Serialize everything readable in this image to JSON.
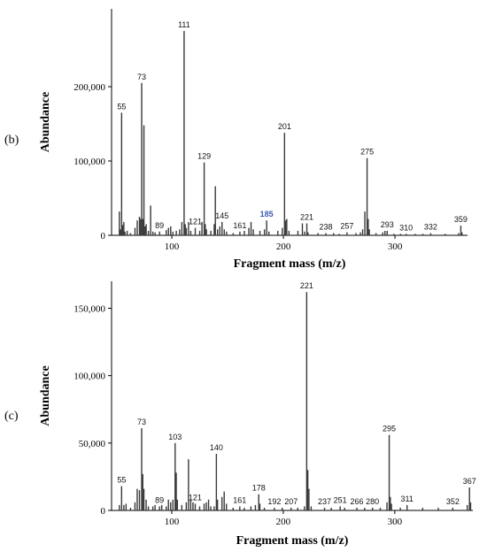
{
  "chart_data": [
    {
      "panel_label": "(b)",
      "type": "bar",
      "xlabel": "Fragment mass (m/z)",
      "ylabel": "Abundance",
      "xlim": [
        46,
        365
      ],
      "ylim": [
        0,
        300000
      ],
      "xticks": [
        100,
        200,
        300
      ],
      "yticks": [
        0,
        100000,
        200000
      ],
      "ytick_labels": [
        "0",
        "100,000",
        "200,000"
      ],
      "peaks": [
        {
          "x": 53,
          "y": 32000
        },
        {
          "x": 54,
          "y": 8000
        },
        {
          "x": 55,
          "y": 165000,
          "label": "55"
        },
        {
          "x": 56,
          "y": 14000
        },
        {
          "x": 57,
          "y": 18000
        },
        {
          "x": 58,
          "y": 5000
        },
        {
          "x": 60,
          "y": 6000
        },
        {
          "x": 63,
          "y": 3000
        },
        {
          "x": 67,
          "y": 10000
        },
        {
          "x": 69,
          "y": 20000
        },
        {
          "x": 71,
          "y": 25000
        },
        {
          "x": 72,
          "y": 22000
        },
        {
          "x": 73,
          "y": 205000,
          "label": "73"
        },
        {
          "x": 74,
          "y": 22000
        },
        {
          "x": 75,
          "y": 148000
        },
        {
          "x": 76,
          "y": 12000
        },
        {
          "x": 77,
          "y": 15000
        },
        {
          "x": 79,
          "y": 6000
        },
        {
          "x": 81,
          "y": 40000
        },
        {
          "x": 83,
          "y": 5000
        },
        {
          "x": 85,
          "y": 4000
        },
        {
          "x": 89,
          "y": 5000,
          "label": "89"
        },
        {
          "x": 95,
          "y": 7000
        },
        {
          "x": 97,
          "y": 10000
        },
        {
          "x": 99,
          "y": 12000
        },
        {
          "x": 101,
          "y": 5000
        },
        {
          "x": 104,
          "y": 6000
        },
        {
          "x": 107,
          "y": 8000
        },
        {
          "x": 109,
          "y": 18000
        },
        {
          "x": 111,
          "y": 275000,
          "label": "111"
        },
        {
          "x": 112,
          "y": 15000
        },
        {
          "x": 113,
          "y": 10000
        },
        {
          "x": 115,
          "y": 18000
        },
        {
          "x": 117,
          "y": 6000
        },
        {
          "x": 121,
          "y": 10000,
          "label": "121"
        },
        {
          "x": 125,
          "y": 6000
        },
        {
          "x": 127,
          "y": 18000
        },
        {
          "x": 129,
          "y": 98000,
          "label": "129"
        },
        {
          "x": 130,
          "y": 15000
        },
        {
          "x": 131,
          "y": 8000
        },
        {
          "x": 135,
          "y": 6000
        },
        {
          "x": 138,
          "y": 15000
        },
        {
          "x": 139,
          "y": 66000
        },
        {
          "x": 141,
          "y": 8000
        },
        {
          "x": 143,
          "y": 12000
        },
        {
          "x": 145,
          "y": 18000,
          "label": "145"
        },
        {
          "x": 147,
          "y": 8000
        },
        {
          "x": 149,
          "y": 5000
        },
        {
          "x": 155,
          "y": 3000
        },
        {
          "x": 161,
          "y": 5000,
          "label": "161"
        },
        {
          "x": 165,
          "y": 6000
        },
        {
          "x": 169,
          "y": 10000
        },
        {
          "x": 171,
          "y": 18000
        },
        {
          "x": 173,
          "y": 8000
        },
        {
          "x": 179,
          "y": 6000
        },
        {
          "x": 183,
          "y": 8000
        },
        {
          "x": 185,
          "y": 20000,
          "label": "185",
          "faded": true
        },
        {
          "x": 187,
          "y": 5000
        },
        {
          "x": 195,
          "y": 6000
        },
        {
          "x": 199,
          "y": 10000
        },
        {
          "x": 201,
          "y": 138000,
          "label": "201"
        },
        {
          "x": 202,
          "y": 20000
        },
        {
          "x": 203,
          "y": 22000
        },
        {
          "x": 205,
          "y": 6000
        },
        {
          "x": 213,
          "y": 6000
        },
        {
          "x": 217,
          "y": 16000
        },
        {
          "x": 219,
          "y": 5000
        },
        {
          "x": 221,
          "y": 16000,
          "label": "221"
        },
        {
          "x": 222,
          "y": 4000
        },
        {
          "x": 231,
          "y": 3000
        },
        {
          "x": 238,
          "y": 3000,
          "label": "238"
        },
        {
          "x": 245,
          "y": 3000
        },
        {
          "x": 250,
          "y": 2000
        },
        {
          "x": 257,
          "y": 4000,
          "label": "257"
        },
        {
          "x": 265,
          "y": 3000
        },
        {
          "x": 269,
          "y": 4000
        },
        {
          "x": 271,
          "y": 8000
        },
        {
          "x": 273,
          "y": 32000
        },
        {
          "x": 275,
          "y": 104000,
          "label": "275"
        },
        {
          "x": 276,
          "y": 22000
        },
        {
          "x": 277,
          "y": 8000
        },
        {
          "x": 283,
          "y": 3000
        },
        {
          "x": 289,
          "y": 4000
        },
        {
          "x": 291,
          "y": 6000
        },
        {
          "x": 293,
          "y": 6000,
          "label": "293"
        },
        {
          "x": 299,
          "y": 2000
        },
        {
          "x": 305,
          "y": 2000
        },
        {
          "x": 310,
          "y": 2000,
          "label": "310"
        },
        {
          "x": 318,
          "y": 2000
        },
        {
          "x": 325,
          "y": 2000
        },
        {
          "x": 332,
          "y": 3000,
          "label": "332"
        },
        {
          "x": 345,
          "y": 2000
        },
        {
          "x": 357,
          "y": 3000
        },
        {
          "x": 359,
          "y": 13000,
          "label": "359"
        },
        {
          "x": 360,
          "y": 4000
        }
      ]
    },
    {
      "panel_label": "(c)",
      "type": "bar",
      "xlabel": "Fragment mass (m/z)",
      "ylabel": "Abundance",
      "xlim": [
        46,
        370
      ],
      "ylim": [
        0,
        170000
      ],
      "xticks": [
        100,
        200,
        300
      ],
      "yticks": [
        0,
        50000,
        100000,
        150000
      ],
      "ytick_labels": [
        "0",
        "50,000",
        "100,000",
        "150,000"
      ],
      "peaks": [
        {
          "x": 53,
          "y": 4000
        },
        {
          "x": 55,
          "y": 18000,
          "label": "55"
        },
        {
          "x": 57,
          "y": 4000
        },
        {
          "x": 59,
          "y": 5000
        },
        {
          "x": 63,
          "y": 2000
        },
        {
          "x": 67,
          "y": 6000
        },
        {
          "x": 69,
          "y": 16000
        },
        {
          "x": 71,
          "y": 15000
        },
        {
          "x": 73,
          "y": 61000,
          "label": "73"
        },
        {
          "x": 74,
          "y": 27000
        },
        {
          "x": 75,
          "y": 16000
        },
        {
          "x": 77,
          "y": 8000
        },
        {
          "x": 79,
          "y": 3000
        },
        {
          "x": 83,
          "y": 3000
        },
        {
          "x": 85,
          "y": 4000
        },
        {
          "x": 89,
          "y": 3000,
          "label": "89"
        },
        {
          "x": 91,
          "y": 4000
        },
        {
          "x": 95,
          "y": 3000
        },
        {
          "x": 97,
          "y": 8000
        },
        {
          "x": 99,
          "y": 6000
        },
        {
          "x": 101,
          "y": 8000
        },
        {
          "x": 103,
          "y": 50000,
          "label": "103"
        },
        {
          "x": 104,
          "y": 28000
        },
        {
          "x": 105,
          "y": 8000
        },
        {
          "x": 109,
          "y": 4000
        },
        {
          "x": 113,
          "y": 6000
        },
        {
          "x": 115,
          "y": 38000
        },
        {
          "x": 117,
          "y": 8000
        },
        {
          "x": 119,
          "y": 6000
        },
        {
          "x": 121,
          "y": 5000,
          "label": "121"
        },
        {
          "x": 125,
          "y": 3000
        },
        {
          "x": 129,
          "y": 5000
        },
        {
          "x": 131,
          "y": 6000
        },
        {
          "x": 133,
          "y": 8000
        },
        {
          "x": 135,
          "y": 3000
        },
        {
          "x": 138,
          "y": 3000
        },
        {
          "x": 140,
          "y": 42000,
          "label": "140"
        },
        {
          "x": 141,
          "y": 8000
        },
        {
          "x": 145,
          "y": 10000
        },
        {
          "x": 147,
          "y": 14000
        },
        {
          "x": 149,
          "y": 5000
        },
        {
          "x": 155,
          "y": 2000
        },
        {
          "x": 161,
          "y": 3000,
          "label": "161"
        },
        {
          "x": 165,
          "y": 2000
        },
        {
          "x": 171,
          "y": 3000
        },
        {
          "x": 175,
          "y": 4000
        },
        {
          "x": 178,
          "y": 12000,
          "label": "178"
        },
        {
          "x": 179,
          "y": 5000
        },
        {
          "x": 183,
          "y": 2000
        },
        {
          "x": 192,
          "y": 2000,
          "label": "192"
        },
        {
          "x": 199,
          "y": 2000
        },
        {
          "x": 207,
          "y": 2000,
          "label": "207"
        },
        {
          "x": 213,
          "y": 2000
        },
        {
          "x": 219,
          "y": 3000
        },
        {
          "x": 221,
          "y": 162000,
          "label": "221"
        },
        {
          "x": 222,
          "y": 30000
        },
        {
          "x": 223,
          "y": 16000
        },
        {
          "x": 225,
          "y": 3000
        },
        {
          "x": 237,
          "y": 2000,
          "label": "237"
        },
        {
          "x": 243,
          "y": 2000
        },
        {
          "x": 251,
          "y": 3000,
          "label": "251"
        },
        {
          "x": 255,
          "y": 2000
        },
        {
          "x": 266,
          "y": 2000,
          "label": "266"
        },
        {
          "x": 273,
          "y": 2000
        },
        {
          "x": 280,
          "y": 2000,
          "label": "280"
        },
        {
          "x": 287,
          "y": 2000
        },
        {
          "x": 293,
          "y": 6000
        },
        {
          "x": 295,
          "y": 56000,
          "label": "295"
        },
        {
          "x": 296,
          "y": 10000
        },
        {
          "x": 297,
          "y": 5000
        },
        {
          "x": 305,
          "y": 2000
        },
        {
          "x": 311,
          "y": 4000,
          "label": "311"
        },
        {
          "x": 325,
          "y": 2000
        },
        {
          "x": 339,
          "y": 2000
        },
        {
          "x": 352,
          "y": 2000,
          "label": "352"
        },
        {
          "x": 365,
          "y": 4000
        },
        {
          "x": 367,
          "y": 17000,
          "label": "367"
        },
        {
          "x": 368,
          "y": 6000
        }
      ]
    }
  ]
}
